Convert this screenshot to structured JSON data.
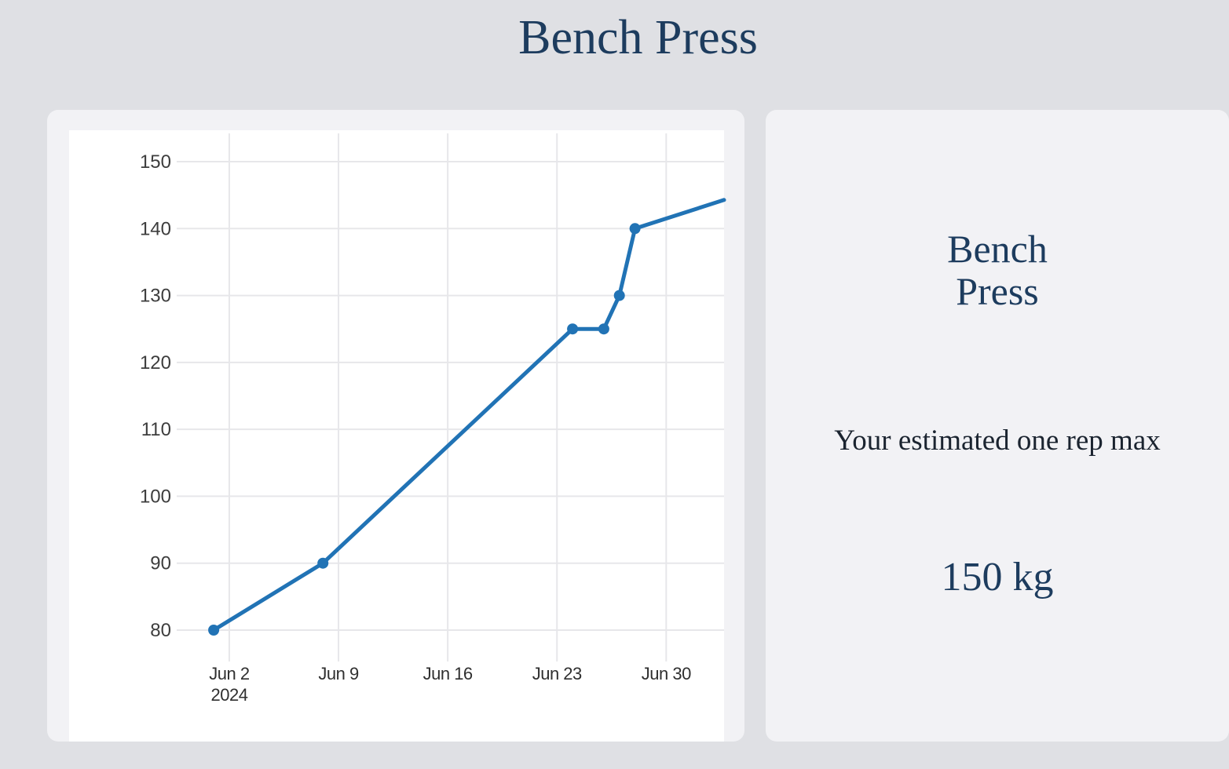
{
  "page": {
    "title": "Bench Press",
    "background_color": "#dfe0e4",
    "card_color": "#f2f2f5",
    "accent_navy": "#1d3c5e"
  },
  "stats_card": {
    "title": "Bench Press",
    "estimate_label": "Your estimated one rep max",
    "estimate_value": "150 kg"
  },
  "chart_data": {
    "type": "line",
    "title": "Bench Press",
    "x_type": "date",
    "xlabel": "",
    "ylabel": "",
    "grid": true,
    "legend": false,
    "line_color": "#2173b5",
    "marker": "circle",
    "ylim": [
      76,
      155
    ],
    "y_ticks": [
      150,
      140,
      130,
      120,
      110,
      100,
      90,
      80
    ],
    "x_ticks": [
      {
        "date": "2024-06-02",
        "label": "Jun 2",
        "sublabel": "2024"
      },
      {
        "date": "2024-06-09",
        "label": "Jun 9",
        "sublabel": ""
      },
      {
        "date": "2024-06-16",
        "label": "Jun 16",
        "sublabel": ""
      },
      {
        "date": "2024-06-23",
        "label": "Jun 23",
        "sublabel": ""
      },
      {
        "date": "2024-06-30",
        "label": "Jun 30",
        "sublabel": ""
      }
    ],
    "points": [
      {
        "date": "2024-06-01",
        "value": 80
      },
      {
        "date": "2024-06-08",
        "value": 90
      },
      {
        "date": "2024-06-24",
        "value": 125
      },
      {
        "date": "2024-06-26",
        "value": 125
      },
      {
        "date": "2024-06-27",
        "value": 130
      },
      {
        "date": "2024-06-28",
        "value": 140
      }
    ],
    "trend_continuation": {
      "approx_date": "2024-07-04",
      "approx_value": 144.5,
      "note": "line continues upward and is clipped at right edge of plot"
    }
  }
}
